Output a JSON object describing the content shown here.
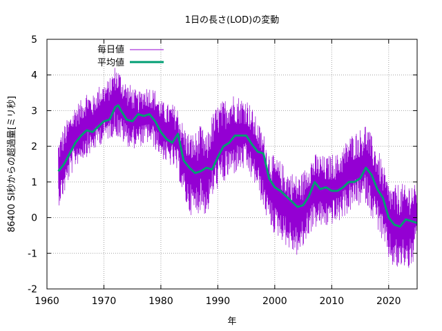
{
  "chart_data": {
    "type": "line",
    "title": "1日の長さ(LOD)の変動",
    "xlabel": "年",
    "ylabel": "86400 SI秒からの超過量[ミリ秒]",
    "xlim": [
      1960,
      2025
    ],
    "ylim": [
      -2,
      5
    ],
    "xticks": [
      1960,
      1970,
      1980,
      1990,
      2000,
      2010,
      2020
    ],
    "yticks": [
      -2,
      -1,
      0,
      1,
      2,
      3,
      4,
      5
    ],
    "grid": true,
    "legend_position": "top-left",
    "series": [
      {
        "name": "毎日値",
        "color": "#9400d3",
        "style": "dense-oscillating",
        "x": [
          1962.0,
          1963.0,
          1964.0,
          1965.0,
          1966.0,
          1967.0,
          1968.0,
          1969.0,
          1970.0,
          1971.0,
          1972.0,
          1973.0,
          1974.0,
          1975.0,
          1976.0,
          1977.0,
          1978.0,
          1979.0,
          1980.0,
          1981.0,
          1982.0,
          1983.0,
          1984.0,
          1985.0,
          1986.0,
          1987.0,
          1988.0,
          1989.0,
          1990.0,
          1991.0,
          1992.0,
          1993.0,
          1994.0,
          1995.0,
          1996.0,
          1997.0,
          1998.0,
          1999.0,
          2000.0,
          2001.0,
          2002.0,
          2003.0,
          2004.0,
          2005.0,
          2006.0,
          2007.0,
          2008.0,
          2009.0,
          2010.0,
          2011.0,
          2012.0,
          2013.0,
          2014.0,
          2015.0,
          2016.0,
          2017.0,
          2018.0,
          2019.0,
          2020.0,
          2021.0,
          2022.0,
          2023.0,
          2024.0,
          2025.0
        ],
        "high": [
          2.2,
          2.6,
          2.9,
          3.2,
          3.3,
          3.6,
          3.4,
          3.7,
          3.8,
          3.9,
          4.3,
          4.1,
          3.8,
          3.7,
          3.5,
          3.7,
          3.7,
          3.6,
          3.3,
          3.2,
          3.2,
          3.1,
          2.6,
          2.4,
          2.4,
          2.6,
          2.3,
          2.9,
          3.2,
          3.3,
          3.5,
          3.5,
          3.4,
          3.4,
          3.1,
          2.7,
          2.4,
          1.9,
          1.7,
          1.6,
          1.4,
          1.3,
          1.2,
          1.3,
          1.7,
          1.8,
          1.8,
          1.7,
          1.8,
          1.8,
          2.0,
          2.3,
          2.4,
          2.5,
          2.7,
          2.3,
          2.0,
          1.5,
          1.0,
          0.9,
          1.0,
          0.9,
          1.1,
          0.8
        ],
        "low": [
          0.3,
          0.6,
          1.1,
          1.4,
          1.6,
          1.7,
          1.8,
          2.0,
          2.1,
          2.2,
          2.3,
          2.1,
          2.0,
          1.9,
          2.0,
          2.0,
          2.1,
          1.9,
          1.7,
          1.5,
          1.4,
          1.2,
          0.5,
          0.1,
          0.0,
          0.2,
          0.0,
          0.5,
          0.8,
          0.9,
          1.1,
          1.2,
          1.3,
          1.3,
          1.0,
          0.8,
          0.2,
          -0.2,
          -0.5,
          -0.6,
          -0.8,
          -1.0,
          -1.1,
          -0.9,
          -0.5,
          -0.3,
          -0.3,
          -0.3,
          -0.2,
          -0.2,
          0.0,
          0.1,
          0.3,
          0.3,
          0.4,
          0.0,
          -0.3,
          -0.8,
          -1.2,
          -1.5,
          -1.5,
          -1.4,
          -1.6,
          -0.6
        ]
      },
      {
        "name": "平均値",
        "color": "#009e73",
        "style": "thick-line",
        "x": [
          1962.0,
          1963.0,
          1964.0,
          1965.0,
          1966.0,
          1967.0,
          1968.0,
          1969.0,
          1970.0,
          1971.0,
          1972.0,
          1972.5,
          1973.0,
          1974.0,
          1975.0,
          1976.0,
          1977.0,
          1978.0,
          1979.0,
          1980.0,
          1981.0,
          1982.0,
          1983.0,
          1984.0,
          1985.0,
          1986.0,
          1987.0,
          1988.0,
          1989.0,
          1990.0,
          1991.0,
          1992.0,
          1993.0,
          1994.0,
          1995.0,
          1996.0,
          1997.0,
          1998.0,
          1999.0,
          2000.0,
          2001.0,
          2002.0,
          2003.0,
          2004.0,
          2005.0,
          2006.0,
          2007.0,
          2008.0,
          2009.0,
          2010.0,
          2011.0,
          2012.0,
          2013.0,
          2014.0,
          2015.0,
          2016.0,
          2017.0,
          2018.0,
          2019.0,
          2020.0,
          2021.0,
          2022.0,
          2023.0,
          2024.0,
          2025.0
        ],
        "y": [
          1.3,
          1.5,
          1.8,
          2.1,
          2.3,
          2.45,
          2.4,
          2.55,
          2.7,
          2.75,
          3.1,
          3.15,
          3.0,
          2.75,
          2.7,
          2.9,
          2.85,
          2.9,
          2.7,
          2.4,
          2.2,
          2.1,
          2.35,
          1.6,
          1.4,
          1.25,
          1.3,
          1.4,
          1.35,
          1.7,
          2.0,
          2.1,
          2.3,
          2.3,
          2.3,
          2.05,
          1.85,
          1.8,
          1.1,
          0.85,
          0.75,
          0.6,
          0.45,
          0.3,
          0.35,
          0.6,
          1.0,
          0.8,
          0.85,
          0.75,
          0.75,
          0.85,
          1.0,
          1.0,
          1.1,
          1.4,
          1.2,
          0.8,
          0.55,
          0.0,
          -0.2,
          -0.25,
          -0.05,
          -0.1,
          -0.15
        ]
      }
    ]
  }
}
